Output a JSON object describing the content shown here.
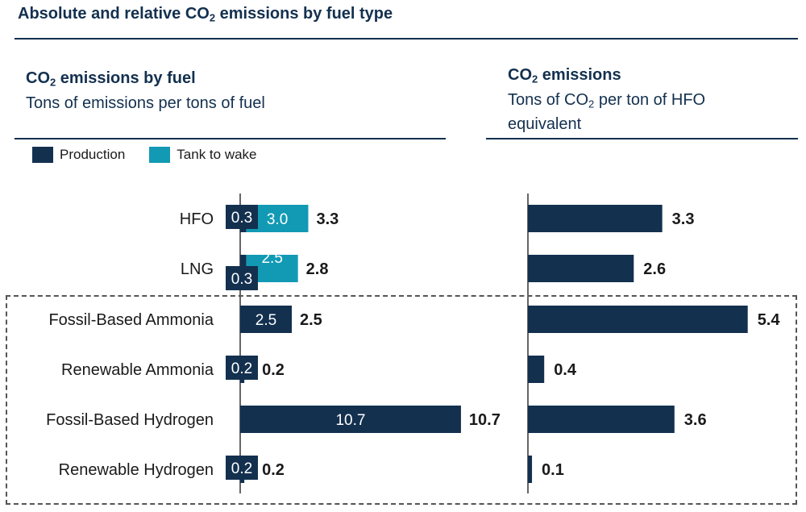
{
  "header": {
    "title_pre": "Absolute and relative CO",
    "title_sub": "2",
    "title_post": " emissions by fuel type"
  },
  "left_panel": {
    "title_pre": "CO",
    "title_sub": "2",
    "title_post": " emissions by fuel",
    "subtitle": "Tons of emissions per tons of fuel"
  },
  "right_panel": {
    "title_pre": "CO",
    "title_sub": "2",
    "title_post": " emissions",
    "subtitle_pre": "Tons of CO",
    "subtitle_sub": "2",
    "subtitle_post": " per ton of HFO equivalent"
  },
  "colors": {
    "production": "#13304f",
    "tank_to_wake": "#129ab4",
    "title": "#13304f"
  },
  "chart_data": [
    {
      "type": "bar",
      "orientation": "horizontal",
      "stacked": true,
      "categories": [
        "HFO",
        "LNG",
        "Fossil-Based Ammonia",
        "Renewable Ammonia",
        "Fossil-Based Hydrogen",
        "Renewable Hydrogen"
      ],
      "series": [
        {
          "name": "Production",
          "values": [
            0.3,
            0.3,
            2.5,
            0.2,
            10.7,
            0.2
          ],
          "labels": [
            "0.3",
            "0.3",
            "2.5",
            "0.2",
            "10.7",
            "0.2"
          ]
        },
        {
          "name": "Tank to wake",
          "values": [
            3.0,
            2.5,
            0,
            0,
            0,
            0
          ],
          "labels": [
            "3.0",
            "2.5",
            "",
            "",
            "",
            ""
          ]
        }
      ],
      "totals": [
        "3.3",
        "2.8",
        "2.5",
        "0.2",
        "10.7",
        "0.2"
      ],
      "legend": "top-left"
    },
    {
      "type": "bar",
      "orientation": "horizontal",
      "categories": [
        "HFO",
        "LNG",
        "Fossil-Based Ammonia",
        "Renewable Ammonia",
        "Fossil-Based Hydrogen",
        "Renewable Hydrogen"
      ],
      "values": [
        3.3,
        2.6,
        5.4,
        0.4,
        3.6,
        0.1
      ],
      "labels": [
        "3.3",
        "2.6",
        "5.4",
        "0.4",
        "3.6",
        "0.1"
      ]
    }
  ]
}
